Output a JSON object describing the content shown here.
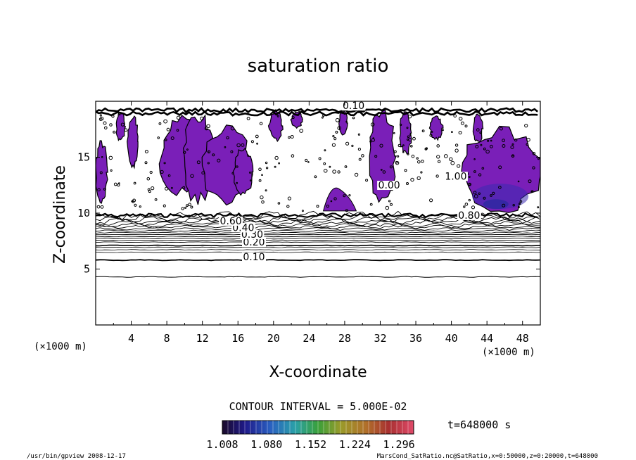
{
  "chart_data": {
    "type": "contour",
    "title": "saturation ratio",
    "xlabel": "X-coordinate",
    "ylabel": "Z-coordinate",
    "x_unit": "(×1000 m)",
    "y_unit": "(×1000 m)",
    "xlim": [
      0,
      50
    ],
    "ylim": [
      0,
      20
    ],
    "x_ticks": [
      4,
      8,
      12,
      16,
      20,
      24,
      28,
      32,
      36,
      40,
      44,
      48
    ],
    "y_ticks": [
      5,
      10,
      15
    ],
    "contour_interval": "CONTOUR INTERVAL = 5.000E-02",
    "contour_labels": [
      {
        "text": "0.10",
        "x": 17.8,
        "z": 5.8
      },
      {
        "text": "0.20",
        "x": 17.8,
        "z": 7.1
      },
      {
        "text": "0.30",
        "x": 17.6,
        "z": 7.8
      },
      {
        "text": "0.40",
        "x": 16.6,
        "z": 8.4
      },
      {
        "text": "0.60",
        "x": 15.2,
        "z": 9.0
      },
      {
        "text": "0.10",
        "x": 29.0,
        "z": 19.3
      },
      {
        "text": "1.00",
        "x": 40.5,
        "z": 13.0
      },
      {
        "text": "0.00",
        "x": 33.0,
        "z": 12.2
      },
      {
        "text": "0.80",
        "x": 42.0,
        "z": 9.5
      }
    ],
    "colorbar": {
      "ticks": [
        "1.008",
        "1.080",
        "1.152",
        "1.224",
        "1.296"
      ],
      "min": 1.008,
      "max": 1.32
    },
    "time_label": "t=648000 s",
    "grid": false,
    "legend": "none"
  },
  "footer": {
    "left": "/usr/bin/gpview   2008-12-17",
    "right": "MarsCond_SatRatio.nc@SatRatio,x=0:50000,z=0:20000,t=648000"
  },
  "colors": {
    "supersaturated_fill": "#7a1fb8",
    "deep_fill": "#3a2ab0",
    "line": "#000000"
  }
}
